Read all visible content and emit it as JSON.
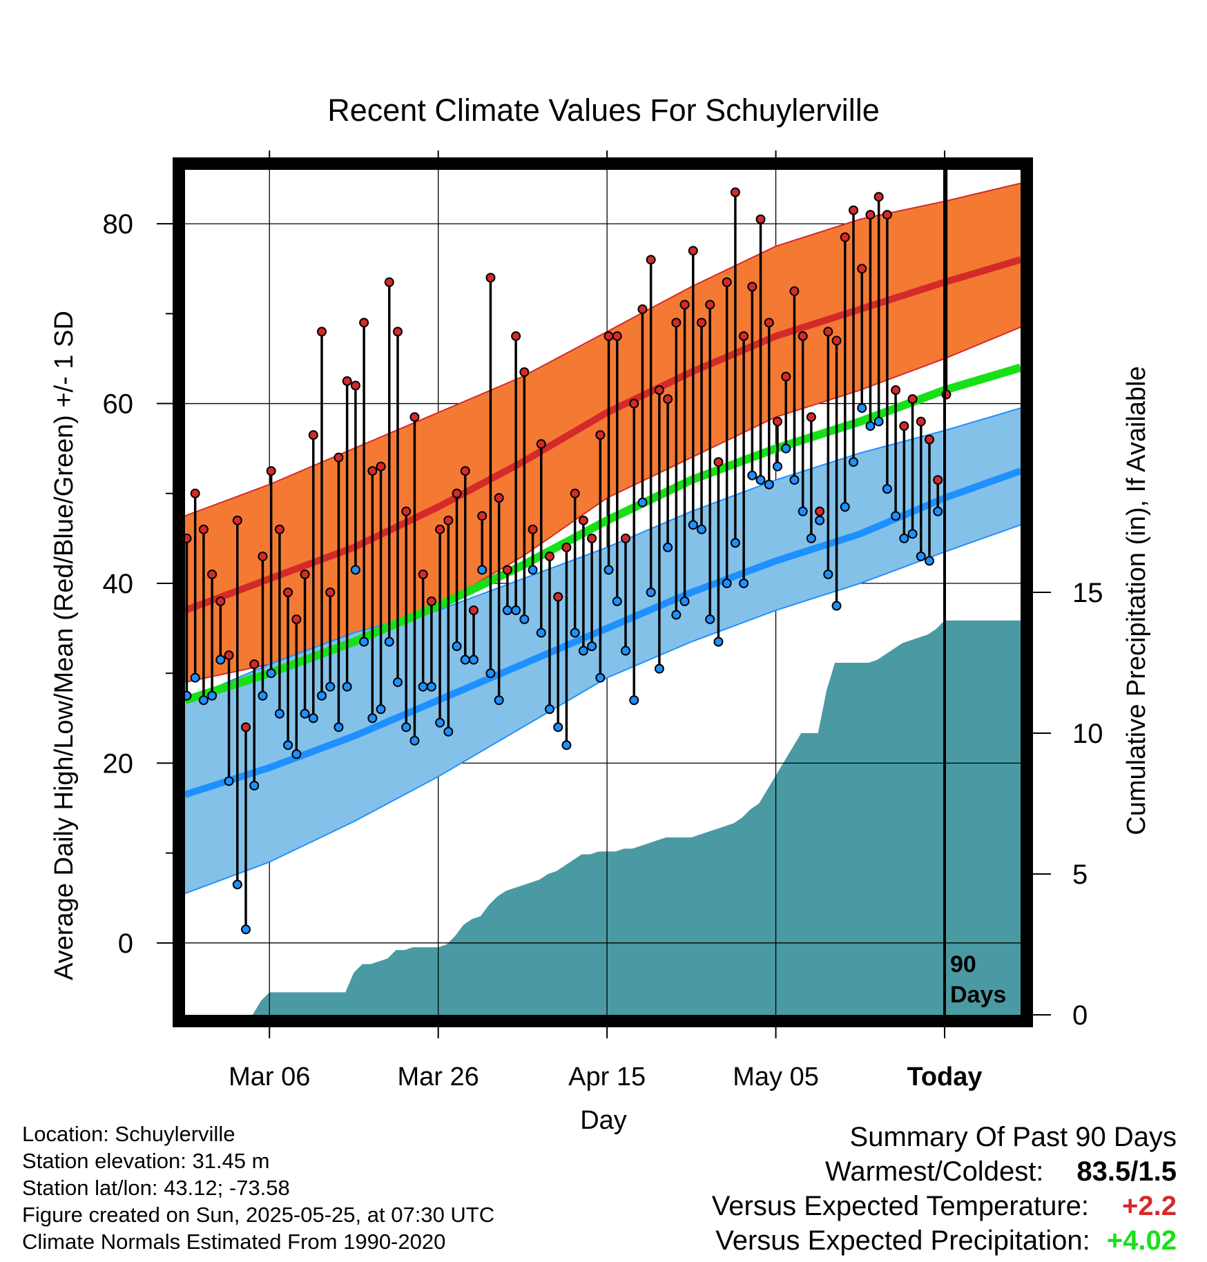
{
  "chart_data": {
    "type": "line",
    "title": "Recent Climate Values For Schuylerville",
    "xlabel": "Day",
    "ylabel": "Average Daily High/Low/Mean (Red/Blue/Green) +/- 1 SD",
    "y2label": "Cumulative Precipitation (in), If Available",
    "ylim": [
      -8,
      86
    ],
    "y2lim": [
      0,
      30
    ],
    "yticks": [
      0,
      20,
      40,
      60,
      80
    ],
    "y2ticks": [
      0,
      5,
      10,
      15
    ],
    "xticks": [
      {
        "day": 10,
        "label": "Mar 06"
      },
      {
        "day": 30,
        "label": "Mar 26"
      },
      {
        "day": 50,
        "label": "Apr 15"
      },
      {
        "day": 70,
        "label": "May 05"
      },
      {
        "day": 90,
        "label": "Today"
      }
    ],
    "xlim": [
      0,
      99
    ],
    "today_day": 90,
    "today_label_line1": "90",
    "today_label_line2": "Days",
    "grid": true,
    "colors": {
      "high": "#d42a2a",
      "high_band": "#f47a33",
      "low": "#1e90ff",
      "low_band": "#83c1e9",
      "mean": "#17e017",
      "precip": "#4a9aa3"
    },
    "normals": {
      "days": [
        0,
        10,
        20,
        30,
        40,
        50,
        60,
        70,
        80,
        90,
        99
      ],
      "high": [
        37,
        40.5,
        44,
        48.5,
        53.5,
        59,
        63.5,
        67.5,
        70.5,
        73.5,
        76
      ],
      "high_upper": [
        47.5,
        51,
        55,
        59,
        63,
        68,
        73,
        77.5,
        80.5,
        82.5,
        84.5
      ],
      "high_lower": [
        29,
        31,
        33.5,
        37.5,
        43,
        49.5,
        54,
        58.5,
        61.5,
        65,
        68.5
      ],
      "low": [
        16.5,
        19.5,
        23,
        27,
        31,
        35,
        39,
        42.5,
        45.5,
        49.5,
        52.5
      ],
      "low_upper": [
        27,
        31,
        34.5,
        37,
        40.5,
        44,
        48,
        51.5,
        54.5,
        57,
        59.5
      ],
      "low_lower": [
        5.5,
        9,
        13.5,
        18.5,
        24,
        29.5,
        33.5,
        37,
        40,
        43.5,
        46.5
      ],
      "mean": [
        27,
        30,
        33.5,
        37.5,
        42,
        47,
        51.5,
        55,
        58,
        61.5,
        64
      ]
    },
    "series": [
      {
        "name": "High",
        "values": [
          45,
          50,
          46,
          41,
          38,
          32,
          47,
          24,
          31,
          43,
          52.5,
          46,
          39,
          36,
          41,
          56.5,
          68,
          39,
          54,
          62.5,
          62,
          69,
          52.5,
          53,
          73.5,
          68,
          48,
          58.5,
          41,
          38,
          46,
          47,
          50,
          52.5,
          37,
          47.5,
          74,
          49.5,
          41.5,
          67.5,
          63.5,
          46,
          55.5,
          43,
          38.5,
          44,
          50,
          47,
          45,
          56.5,
          67.5,
          67.5,
          45,
          60,
          70.5,
          76,
          61.5,
          60.5,
          69,
          71,
          77,
          69,
          71,
          53.5,
          73.5,
          83.5,
          67.5,
          73,
          80.5,
          69,
          58,
          63,
          72.5,
          67.5,
          58.5,
          48,
          68,
          67,
          78.5,
          81.5,
          75,
          81,
          83,
          81,
          61.5,
          57.5,
          60.5,
          58,
          56,
          51.5,
          61
        ]
      },
      {
        "name": "Low",
        "values": [
          27.5,
          29.5,
          27,
          27.5,
          31.5,
          18,
          6.5,
          1.5,
          17.5,
          27.5,
          30,
          25.5,
          22,
          21,
          25.5,
          25,
          27.5,
          28.5,
          24,
          28.5,
          41.5,
          33.5,
          25,
          26,
          33.5,
          29,
          24,
          22.5,
          28.5,
          28.5,
          24.5,
          23.5,
          33,
          31.5,
          31.5,
          41.5,
          30,
          27,
          37,
          37,
          36,
          41.5,
          34.5,
          26,
          24,
          22,
          34.5,
          32.5,
          33,
          29.5,
          41.5,
          38,
          32.5,
          27,
          49,
          39,
          30.5,
          44,
          36.5,
          38,
          46.5,
          46,
          36,
          33.5,
          40,
          44.5,
          40,
          52,
          51.5,
          51,
          53,
          55,
          51.5,
          48,
          45,
          47,
          41,
          37.5,
          48.5,
          53.5,
          59.5,
          57.5,
          58,
          50.5,
          47.5,
          45,
          45.5,
          43,
          42.5,
          48
        ]
      }
    ],
    "precip": {
      "days": [
        0,
        8,
        9,
        10,
        19,
        20,
        21,
        22,
        24,
        25,
        26,
        27,
        28,
        29,
        30,
        31,
        32,
        33,
        34,
        35,
        36,
        37,
        38,
        39,
        40,
        41,
        42,
        43,
        44,
        45,
        46,
        47,
        48,
        49,
        50,
        51,
        52,
        53,
        54,
        55,
        56,
        57,
        58,
        59,
        60,
        61,
        62,
        63,
        64,
        65,
        66,
        67,
        68,
        69,
        70,
        71,
        72,
        73,
        74,
        75,
        76,
        77,
        78,
        79,
        80,
        81,
        82,
        83,
        84,
        85,
        86,
        87,
        88,
        89,
        90,
        99
      ],
      "values": [
        0,
        0,
        0.5,
        0.8,
        0.8,
        1.5,
        1.8,
        1.8,
        2,
        2.3,
        2.3,
        2.4,
        2.4,
        2.4,
        2.4,
        2.5,
        2.8,
        3.2,
        3.4,
        3.5,
        3.9,
        4.2,
        4.4,
        4.5,
        4.6,
        4.7,
        4.8,
        5,
        5.1,
        5.3,
        5.5,
        5.7,
        5.7,
        5.8,
        5.8,
        5.8,
        5.9,
        5.9,
        6,
        6.1,
        6.2,
        6.3,
        6.3,
        6.3,
        6.3,
        6.4,
        6.5,
        6.6,
        6.7,
        6.8,
        7,
        7.3,
        7.5,
        8,
        8.5,
        9,
        9.5,
        10,
        10,
        10,
        11.5,
        12.5,
        12.5,
        12.5,
        12.5,
        12.5,
        12.6,
        12.8,
        13,
        13.2,
        13.3,
        13.4,
        13.5,
        13.7,
        14,
        14
      ]
    }
  },
  "footer": {
    "location": "Location: Schuylerville",
    "elevation": "Station elevation: 31.45 m",
    "latlon": "Station lat/lon: 43.12; -73.58",
    "created": "Figure created on Sun, 2025-05-25, at 07:30 UTC",
    "normals": "Climate Normals Estimated From 1990-2020"
  },
  "summary": {
    "title": "Summary Of Past 90 Days",
    "warmest_coldest_label": "Warmest/Coldest:",
    "warmest_coldest_value": "83.5/1.5",
    "temp_label": "Versus Expected Temperature:",
    "temp_value": "+2.2",
    "temp_color": "#d42a2a",
    "precip_label": "Versus Expected Precipitation:",
    "precip_value": "+4.02",
    "precip_color": "#17e017"
  }
}
